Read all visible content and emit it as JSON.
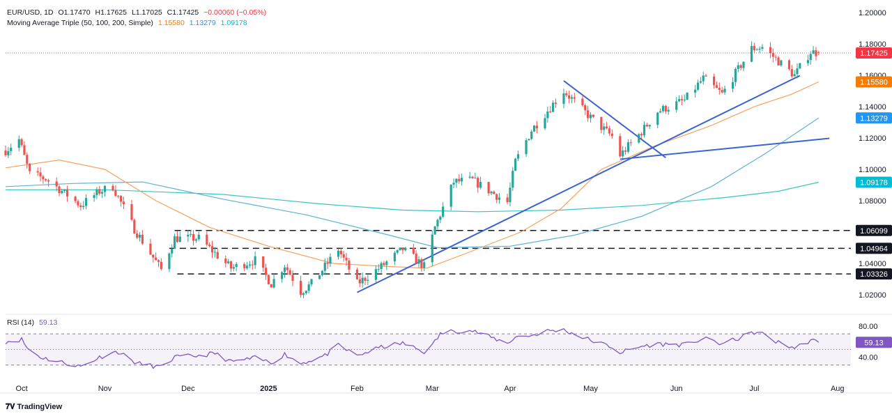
{
  "legend": {
    "symbol": "EUR/USD, 1D",
    "open": "O1.17470",
    "high": "H1.17625",
    "low": "L1.17025",
    "close": "C1.17425",
    "change": "−0.00060 (−0.05%)",
    "ma_title": "Moving Average Triple (50, 100, 200, Simple)",
    "ma50": "1.15580",
    "ma100": "1.13279",
    "ma200": "1.09178",
    "rsi_title": "RSI (14)",
    "rsi_value": "59.13"
  },
  "brand": {
    "name": "TradingView"
  },
  "colors": {
    "up": "#26a69a",
    "down": "#ef5350",
    "ma50": "#f5a25d",
    "ma100": "#5ab3d6",
    "ma200": "#33c6c4",
    "trend": "#3b63d1",
    "rsi": "#7e57c2",
    "price_badge": "#f23645",
    "ma50_badge": "#f57c00",
    "ma100_badge": "#2196f3",
    "ma200_badge": "#00bcd4"
  },
  "chart_data": {
    "type": "candlestick",
    "symbol": "EUR/USD",
    "timeframe": "1D",
    "price_ticks": [
      "1.20000",
      "1.18000",
      "1.16000",
      "1.14000",
      "1.12000",
      "1.10000",
      "1.08000",
      "1.06000",
      "1.04000",
      "1.02000"
    ],
    "price_range": [
      1.008,
      1.2045
    ],
    "x_labels": [
      "Oct",
      "Nov",
      "Dec",
      "2025",
      "Feb",
      "Mar",
      "Apr",
      "May",
      "Jun",
      "Jul",
      "Aug"
    ],
    "x_label_positions": [
      "2024-10-01",
      "2024-11-01",
      "2024-12-02",
      "2025-01-01",
      "2025-02-03",
      "2025-03-03",
      "2025-04-01",
      "2025-05-01",
      "2025-06-02",
      "2025-07-01",
      "2025-08-01"
    ],
    "date_range": [
      "2024-09-25",
      "2025-08-06"
    ],
    "price_badges": [
      {
        "label": "1.17425",
        "value": 1.17425,
        "color": "#f23645"
      },
      {
        "label": "1.15580",
        "value": 1.1558,
        "color": "#f57c00"
      },
      {
        "label": "1.13279",
        "value": 1.13279,
        "color": "#2196f3"
      },
      {
        "label": "1.09178",
        "value": 1.09178,
        "color": "#00bcd4"
      },
      {
        "label": "1.06099",
        "value": 1.06099,
        "color": "#131722"
      },
      {
        "label": "1.04964",
        "value": 1.04964,
        "color": "#131722"
      },
      {
        "label": "1.03326",
        "value": 1.03326,
        "color": "#131722"
      }
    ],
    "horizontal_levels": [
      {
        "price": 1.06099,
        "from": "2024-11-27",
        "to": "2025-08-06"
      },
      {
        "price": 1.04964,
        "from": "2024-11-25",
        "to": "2025-08-06"
      },
      {
        "price": 1.03326,
        "from": "2024-11-28",
        "to": "2025-08-06"
      }
    ],
    "current_price": 1.17425,
    "anchors": [
      [
        "2024-09-25",
        1.112
      ],
      [
        "2024-09-30",
        1.119
      ],
      [
        "2024-10-04",
        1.097
      ],
      [
        "2024-10-10",
        1.094
      ],
      [
        "2024-10-23",
        1.077
      ],
      [
        "2024-10-30",
        1.086
      ],
      [
        "2024-11-04",
        1.089
      ],
      [
        "2024-11-12",
        1.062
      ],
      [
        "2024-11-22",
        1.036
      ],
      [
        "2024-11-27",
        1.056
      ],
      [
        "2024-12-06",
        1.056
      ],
      [
        "2024-12-18",
        1.037
      ],
      [
        "2024-12-27",
        1.042
      ],
      [
        "2025-01-02",
        1.027
      ],
      [
        "2025-01-07",
        1.039
      ],
      [
        "2025-01-13",
        1.022
      ],
      [
        "2025-01-17",
        1.027
      ],
      [
        "2025-01-27",
        1.049
      ],
      [
        "2025-02-03",
        1.027
      ],
      [
        "2025-02-12",
        1.038
      ],
      [
        "2025-02-20",
        1.049
      ],
      [
        "2025-02-28",
        1.038
      ],
      [
        "2025-03-04",
        1.063
      ],
      [
        "2025-03-11",
        1.092
      ],
      [
        "2025-03-18",
        1.093
      ],
      [
        "2025-03-31",
        1.079
      ],
      [
        "2025-04-03",
        1.105
      ],
      [
        "2025-04-09",
        1.125
      ],
      [
        "2025-04-21",
        1.15
      ],
      [
        "2025-05-01",
        1.133
      ],
      [
        "2025-05-09",
        1.121
      ],
      [
        "2025-05-12",
        1.109
      ],
      [
        "2025-05-20",
        1.124
      ],
      [
        "2025-05-26",
        1.137
      ],
      [
        "2025-06-05",
        1.144
      ],
      [
        "2025-06-12",
        1.158
      ],
      [
        "2025-06-19",
        1.148
      ],
      [
        "2025-06-30",
        1.177
      ],
      [
        "2025-07-04",
        1.178
      ],
      [
        "2025-07-16",
        1.16
      ],
      [
        "2025-07-22",
        1.175
      ],
      [
        "2025-07-25",
        1.1742
      ]
    ],
    "moving_averages": {
      "ma50": [
        [
          "2024-09-25",
          1.101
        ],
        [
          "2024-10-15",
          1.106
        ],
        [
          "2024-11-01",
          1.1
        ],
        [
          "2024-11-20",
          1.08
        ],
        [
          "2024-12-10",
          1.063
        ],
        [
          "2025-01-01",
          1.051
        ],
        [
          "2025-01-25",
          1.04
        ],
        [
          "2025-02-15",
          1.038
        ],
        [
          "2025-03-01",
          1.037
        ],
        [
          "2025-03-15",
          1.046
        ],
        [
          "2025-04-05",
          1.06
        ],
        [
          "2025-04-20",
          1.075
        ],
        [
          "2025-05-05",
          1.1
        ],
        [
          "2025-05-25",
          1.115
        ],
        [
          "2025-06-15",
          1.128
        ],
        [
          "2025-07-01",
          1.14
        ],
        [
          "2025-07-15",
          1.148
        ],
        [
          "2025-07-25",
          1.1558
        ]
      ],
      "ma100": [
        [
          "2024-09-25",
          1.089
        ],
        [
          "2024-10-20",
          1.091
        ],
        [
          "2024-11-15",
          1.092
        ],
        [
          "2024-12-15",
          1.081
        ],
        [
          "2025-01-15",
          1.071
        ],
        [
          "2025-02-15",
          1.058
        ],
        [
          "2025-03-05",
          1.05
        ],
        [
          "2025-04-01",
          1.051
        ],
        [
          "2025-04-25",
          1.058
        ],
        [
          "2025-05-20",
          1.07
        ],
        [
          "2025-06-15",
          1.089
        ],
        [
          "2025-07-05",
          1.11
        ],
        [
          "2025-07-25",
          1.1328
        ]
      ],
      "ma200": [
        [
          "2024-09-25",
          1.087
        ],
        [
          "2024-11-01",
          1.087
        ],
        [
          "2024-12-15",
          1.084
        ],
        [
          "2025-01-20",
          1.078
        ],
        [
          "2025-02-20",
          1.074
        ],
        [
          "2025-03-20",
          1.073
        ],
        [
          "2025-04-20",
          1.074
        ],
        [
          "2025-05-20",
          1.077
        ],
        [
          "2025-06-20",
          1.082
        ],
        [
          "2025-07-10",
          1.086
        ],
        [
          "2025-07-25",
          1.0918
        ]
      ]
    },
    "trend_lines": [
      {
        "from": [
          "2025-02-03",
          1.0215
        ],
        "to": [
          "2025-07-18",
          1.1598
        ]
      },
      {
        "from": [
          "2025-05-12",
          1.1065
        ],
        "to": [
          "2025-07-29",
          1.1198
        ]
      },
      {
        "from": [
          "2025-04-21",
          1.1565
        ],
        "to": [
          "2025-05-29",
          1.1075
        ]
      }
    ],
    "rsi": {
      "label": "RSI (14)",
      "range": [
        20,
        80
      ],
      "ticks": [
        "80.00",
        "40.00"
      ],
      "bands": [
        70,
        30
      ],
      "midline": 50,
      "current": 59.13,
      "points": [
        [
          "2024-09-25",
          60
        ],
        [
          "2024-10-01",
          63
        ],
        [
          "2024-10-03",
          52
        ],
        [
          "2024-10-08",
          40
        ],
        [
          "2024-10-18",
          32
        ],
        [
          "2024-10-23",
          28
        ],
        [
          "2024-10-30",
          40
        ],
        [
          "2024-11-04",
          46
        ],
        [
          "2024-11-06",
          47
        ],
        [
          "2024-11-13",
          32
        ],
        [
          "2024-11-22",
          27
        ],
        [
          "2024-11-27",
          40
        ],
        [
          "2024-12-06",
          42
        ],
        [
          "2024-12-12",
          45
        ],
        [
          "2024-12-18",
          34
        ],
        [
          "2024-12-27",
          39
        ],
        [
          "2025-01-02",
          33
        ],
        [
          "2025-01-07",
          44
        ],
        [
          "2025-01-13",
          32
        ],
        [
          "2025-01-22",
          42
        ],
        [
          "2025-01-27",
          55
        ],
        [
          "2025-02-03",
          42
        ],
        [
          "2025-02-12",
          53
        ],
        [
          "2025-02-20",
          58
        ],
        [
          "2025-02-28",
          47
        ],
        [
          "2025-03-03",
          55
        ],
        [
          "2025-03-06",
          70
        ],
        [
          "2025-03-11",
          74
        ],
        [
          "2025-03-18",
          74
        ],
        [
          "2025-03-31",
          58
        ],
        [
          "2025-04-03",
          66
        ],
        [
          "2025-04-09",
          68
        ],
        [
          "2025-04-15",
          74
        ],
        [
          "2025-04-21",
          75
        ],
        [
          "2025-05-01",
          62
        ],
        [
          "2025-05-09",
          53
        ],
        [
          "2025-05-12",
          46
        ],
        [
          "2025-05-20",
          54
        ],
        [
          "2025-05-26",
          57
        ],
        [
          "2025-06-05",
          56
        ],
        [
          "2025-06-12",
          64
        ],
        [
          "2025-06-19",
          57
        ],
        [
          "2025-06-25",
          64
        ],
        [
          "2025-07-01",
          72
        ],
        [
          "2025-07-04",
          70
        ],
        [
          "2025-07-09",
          60
        ],
        [
          "2025-07-16",
          52
        ],
        [
          "2025-07-18",
          55
        ],
        [
          "2025-07-22",
          62
        ],
        [
          "2025-07-25",
          59.13
        ]
      ]
    }
  }
}
